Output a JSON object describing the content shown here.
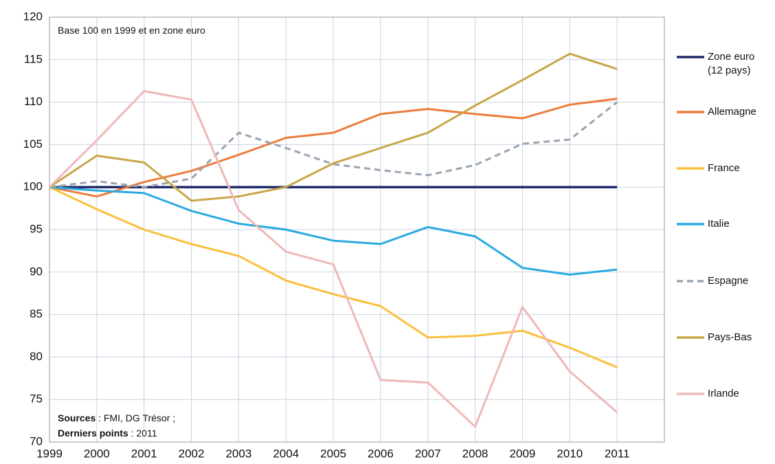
{
  "chart_data": {
    "type": "line",
    "annotation": "Base 100 en 1999 et en zone euro",
    "sources_label": "Sources",
    "sources_text": ": FMI, DG Trésor ;",
    "last_label": "Derniers points",
    "last_text": ": 2011",
    "x": [
      1999,
      2000,
      2001,
      2002,
      2003,
      2004,
      2005,
      2006,
      2007,
      2008,
      2009,
      2010,
      2011
    ],
    "xlim": [
      1999,
      2012
    ],
    "xticks": [
      1999,
      2000,
      2001,
      2002,
      2003,
      2004,
      2005,
      2006,
      2007,
      2008,
      2009,
      2010,
      2011
    ],
    "ylim": [
      70,
      120
    ],
    "yticks": [
      70,
      75,
      80,
      85,
      90,
      95,
      100,
      105,
      110,
      115,
      120
    ],
    "grid": true,
    "legend": "right",
    "series": [
      {
        "name": "Zone euro (12 pays)",
        "color": "#1f2a6b",
        "dash": false,
        "values": [
          100,
          100,
          100,
          100,
          100,
          100,
          100,
          100,
          100,
          100,
          100,
          100,
          100
        ]
      },
      {
        "name": "Allemagne",
        "color": "#ec7c3c",
        "dash": false,
        "values": [
          100,
          98.9,
          100.6,
          101.9,
          103.8,
          105.8,
          106.4,
          108.6,
          109.2,
          108.6,
          108.1,
          109.7,
          110.4
        ]
      },
      {
        "name": "France",
        "color": "#fbbf3c",
        "dash": false,
        "values": [
          100,
          97.4,
          95.0,
          93.3,
          91.9,
          89.0,
          87.4,
          86.0,
          82.3,
          82.5,
          83.1,
          81.1,
          78.8
        ]
      },
      {
        "name": "Italie",
        "color": "#2aa9e0",
        "dash": false,
        "values": [
          100,
          99.6,
          99.3,
          97.2,
          95.7,
          95.0,
          93.7,
          93.3,
          95.3,
          94.2,
          90.5,
          89.7,
          90.3
        ]
      },
      {
        "name": "Espagne",
        "color": "#9aa3b0",
        "dash": true,
        "values": [
          100,
          100.7,
          100.0,
          101.0,
          106.4,
          104.6,
          102.7,
          102.0,
          101.4,
          102.6,
          105.1,
          105.6,
          110.0
        ]
      },
      {
        "name": "Pays-Bas",
        "color": "#c8a648",
        "dash": false,
        "values": [
          100,
          103.7,
          102.9,
          98.4,
          98.9,
          100.0,
          102.8,
          104.6,
          106.4,
          109.6,
          112.6,
          115.7,
          113.9
        ]
      },
      {
        "name": "Irlande",
        "color": "#f0b8b8",
        "dash": false,
        "values": [
          100,
          105.5,
          111.3,
          110.3,
          97.3,
          92.4,
          90.9,
          77.3,
          77.0,
          71.8,
          85.9,
          78.3,
          73.5
        ]
      }
    ]
  }
}
